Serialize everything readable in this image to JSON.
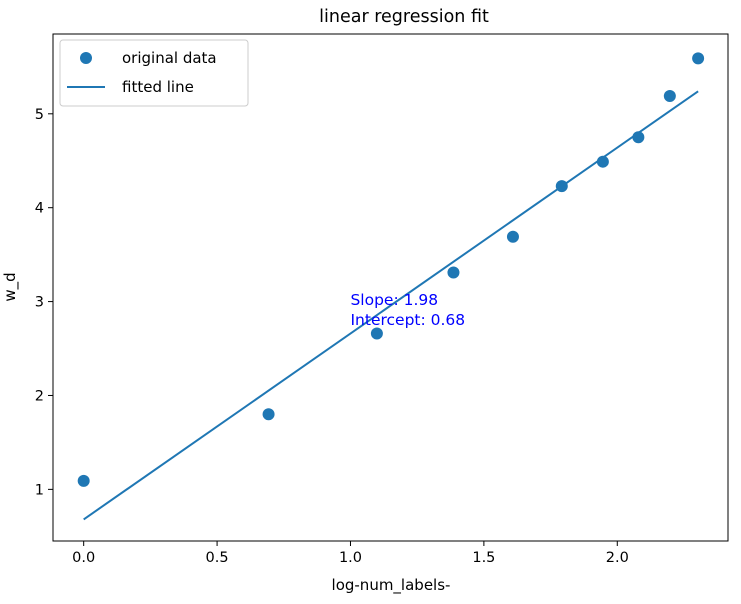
{
  "chart_data": {
    "type": "scatter",
    "title": "linear regression fit",
    "xlabel": "log-num_labels-",
    "ylabel": "w_d",
    "xlim": [
      -0.115,
      2.415
    ],
    "ylim": [
      0.45,
      5.85
    ],
    "xticks": [
      0.0,
      0.5,
      1.0,
      1.5,
      2.0
    ],
    "xtick_labels": [
      "0.0",
      "0.5",
      "1.0",
      "1.5",
      "2.0"
    ],
    "yticks": [
      1,
      2,
      3,
      4,
      5
    ],
    "ytick_labels": [
      "1",
      "2",
      "3",
      "4",
      "5"
    ],
    "grid": false,
    "legend_position": "upper-left",
    "series": [
      {
        "name": "original data",
        "kind": "scatter",
        "color": "#1f77b4",
        "x": [
          0.0,
          0.693,
          1.099,
          1.386,
          1.609,
          1.792,
          1.946,
          2.079,
          2.197,
          2.303
        ],
        "y": [
          1.09,
          1.8,
          2.66,
          3.31,
          3.69,
          4.23,
          4.49,
          4.75,
          5.19,
          5.59
        ]
      },
      {
        "name": "fitted line",
        "kind": "line",
        "color": "#1f77b4",
        "slope": 1.98,
        "intercept": 0.68,
        "x": [
          0.0,
          2.303
        ]
      }
    ],
    "annotation": {
      "lines": [
        "Slope: 1.98",
        "Intercept: 0.68"
      ],
      "x": 1.0,
      "y": 2.93,
      "color": "#0000ff"
    }
  }
}
